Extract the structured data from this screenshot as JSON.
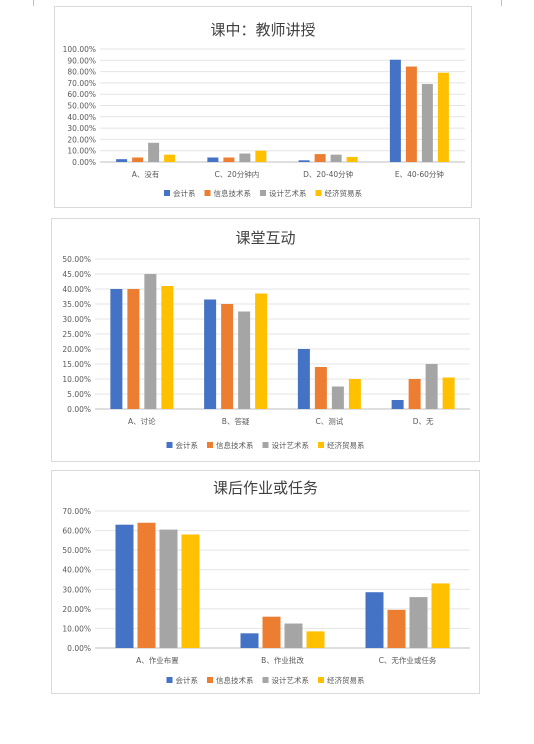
{
  "chart_data": [
    {
      "type": "bar",
      "title": "课中：教师讲授",
      "categories": [
        "A、没有",
        "C、20分钟内",
        "D、20-40分钟",
        "E、40-60分钟"
      ],
      "series": [
        {
          "name": "会计系",
          "values": [
            2.5,
            4.0,
            1.5,
            90.5
          ]
        },
        {
          "name": "信息技术系",
          "values": [
            4.0,
            4.0,
            7.0,
            84.5
          ]
        },
        {
          "name": "设计艺术系",
          "values": [
            17.0,
            7.5,
            6.5,
            69.0
          ]
        },
        {
          "name": "经济贸易系",
          "values": [
            6.5,
            10.0,
            4.5,
            79.0
          ]
        }
      ],
      "yticks": [
        "0.00%",
        "10.00%",
        "20.00%",
        "30.00%",
        "40.00%",
        "50.00%",
        "60.00%",
        "70.00%",
        "80.00%",
        "90.00%",
        "100.00%"
      ],
      "ylim": [
        0,
        100
      ],
      "legend": "bottom",
      "grid": true
    },
    {
      "type": "bar",
      "title": "课堂互动",
      "categories": [
        "A、讨论",
        "B、答疑",
        "C、测试",
        "D、无"
      ],
      "series": [
        {
          "name": "会计系",
          "values": [
            40.0,
            36.5,
            20.0,
            3.0
          ]
        },
        {
          "name": "信息技术系",
          "values": [
            40.0,
            35.0,
            14.0,
            10.0
          ]
        },
        {
          "name": "设计艺术系",
          "values": [
            45.0,
            32.5,
            7.5,
            15.0
          ]
        },
        {
          "name": "经济贸易系",
          "values": [
            41.0,
            38.5,
            10.0,
            10.5
          ]
        }
      ],
      "yticks": [
        "0.00%",
        "5.00%",
        "10.00%",
        "15.00%",
        "20.00%",
        "25.00%",
        "30.00%",
        "35.00%",
        "40.00%",
        "45.00%",
        "50.00%"
      ],
      "ylim": [
        0,
        50
      ],
      "legend": "bottom",
      "grid": true
    },
    {
      "type": "bar",
      "title": "课后作业或任务",
      "categories": [
        "A、作业布置",
        "B、作业批改",
        "C、无作业或任务"
      ],
      "series": [
        {
          "name": "会计系",
          "values": [
            63.0,
            7.5,
            28.5
          ]
        },
        {
          "name": "信息技术系",
          "values": [
            64.0,
            16.0,
            19.5
          ]
        },
        {
          "name": "设计艺术系",
          "values": [
            60.5,
            12.5,
            26.0
          ]
        },
        {
          "name": "经济贸易系",
          "values": [
            58.0,
            8.5,
            33.0
          ]
        }
      ],
      "yticks": [
        "0.00%",
        "10.00%",
        "20.00%",
        "30.00%",
        "40.00%",
        "50.00%",
        "60.00%",
        "70.00%"
      ],
      "ylim": [
        0,
        70
      ],
      "legend": "bottom",
      "grid": true
    }
  ],
  "colors": [
    "#4472c4",
    "#ed7d31",
    "#a5a5a5",
    "#ffc000"
  ]
}
